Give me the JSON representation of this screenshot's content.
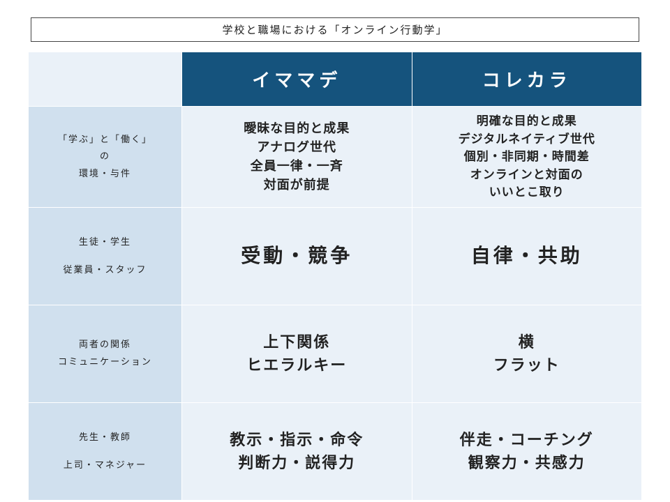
{
  "title": "学校と職場における「オンライン行動学」",
  "columns": {
    "col1": "イママデ",
    "col2": "コレカラ"
  },
  "rows": [
    {
      "label_html": "「学ぶ」と「働く」<br>の<br>環境・与件",
      "col1_lines": [
        "曖昧な目的と成果",
        "アナログ世代",
        "全員一律・一斉",
        "対面が前提"
      ],
      "col2_lines": [
        "明確な目的と成果",
        "デジタルネイティブ世代",
        "個別・非同期・時間差",
        "オンラインと対面の",
        "いいとこ取り"
      ],
      "size": "fs-18",
      "size2": "fs-17"
    },
    {
      "label_html": "生徒・学生<span class=\"gap\"></span>従業員・スタッフ",
      "col1_lines": [
        "受動・競争"
      ],
      "col2_lines": [
        "自律・共助"
      ],
      "size": "fs-28",
      "size2": "fs-28"
    },
    {
      "label_html": "両者の関係<br>コミュニケーション",
      "col1_lines": [
        "上下関係",
        "ヒエラルキー"
      ],
      "col2_lines": [
        "横",
        "フラット"
      ],
      "size": "fs-22",
      "size2": "fs-22"
    },
    {
      "label_html": "先生・教師<span class=\"gap\"></span>上司・マネジャー",
      "col1_lines": [
        "教示・指示・命令",
        "判断力・説得力"
      ],
      "col2_lines": [
        "伴走・コーチング",
        "観察力・共感力"
      ],
      "size": "fs-22",
      "size2": "fs-22"
    }
  ]
}
